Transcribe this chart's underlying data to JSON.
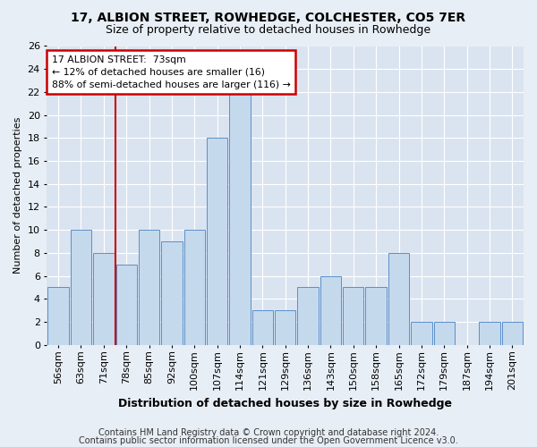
{
  "title1": "17, ALBION STREET, ROWHEDGE, COLCHESTER, CO5 7ER",
  "title2": "Size of property relative to detached houses in Rowhedge",
  "xlabel": "Distribution of detached houses by size in Rowhedge",
  "ylabel": "Number of detached properties",
  "footnote1": "Contains HM Land Registry data © Crown copyright and database right 2024.",
  "footnote2": "Contains public sector information licensed under the Open Government Licence v3.0.",
  "categories": [
    "56sqm",
    "63sqm",
    "71sqm",
    "78sqm",
    "85sqm",
    "92sqm",
    "100sqm",
    "107sqm",
    "114sqm",
    "121sqm",
    "129sqm",
    "136sqm",
    "143sqm",
    "150sqm",
    "158sqm",
    "165sqm",
    "172sqm",
    "179sqm",
    "187sqm",
    "194sqm",
    "201sqm"
  ],
  "values": [
    5,
    10,
    8,
    7,
    10,
    9,
    10,
    18,
    22,
    3,
    3,
    5,
    6,
    5,
    5,
    8,
    2,
    2,
    0,
    2,
    2
  ],
  "bar_color": "#c5d9ed",
  "bar_edge_color": "#5b8fc9",
  "annotation_title": "17 ALBION STREET:  73sqm",
  "annotation_line1": "← 12% of detached houses are smaller (16)",
  "annotation_line2": "88% of semi-detached houses are larger (116) →",
  "vline_bin_idx": 2,
  "ylim": [
    0,
    26
  ],
  "yticks": [
    0,
    2,
    4,
    6,
    8,
    10,
    12,
    14,
    16,
    18,
    20,
    22,
    24,
    26
  ],
  "bg_color": "#e8eef5",
  "plot_bg_color": "#dae4f0",
  "grid_color": "#ffffff",
  "annotation_box_color": "#ffffff",
  "annotation_box_edge": "#cc0000",
  "vline_color": "#cc0000",
  "title1_fontsize": 10,
  "title2_fontsize": 9,
  "axis_label_fontsize": 8,
  "tick_fontsize": 8,
  "footnote_fontsize": 7
}
